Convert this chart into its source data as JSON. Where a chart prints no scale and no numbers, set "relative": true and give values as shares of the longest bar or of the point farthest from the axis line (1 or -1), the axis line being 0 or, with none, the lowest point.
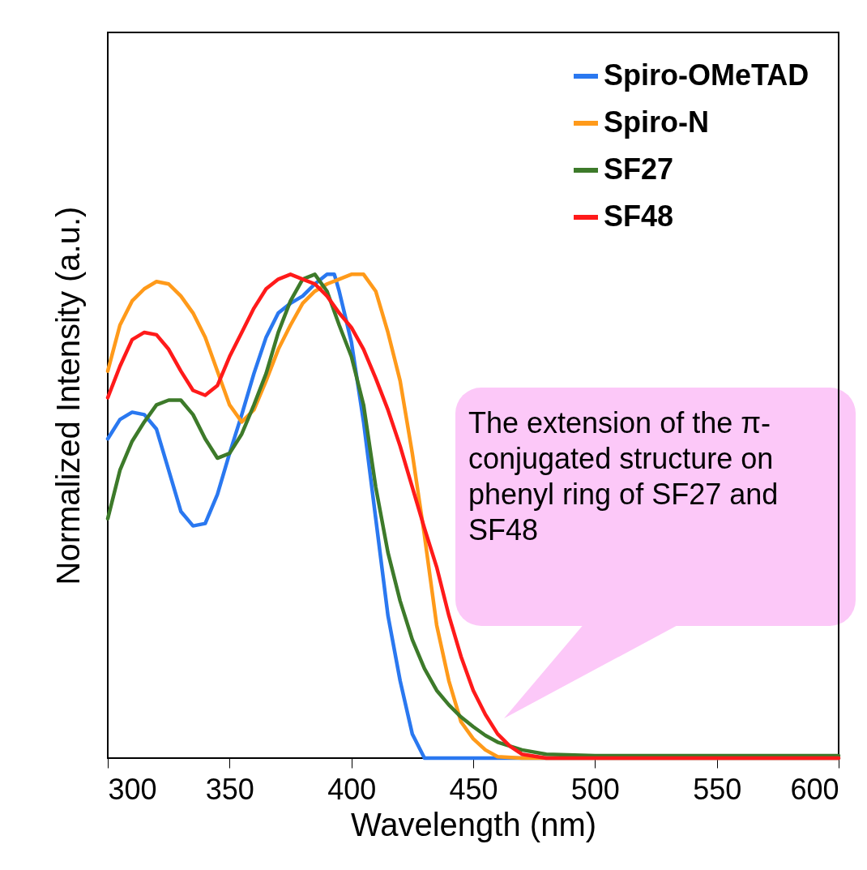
{
  "chart_data": {
    "type": "line",
    "xlabel": "Wavelength (nm)",
    "ylabel": "Normalized Intensity (a.u.)",
    "relative": true,
    "xlim": [
      300,
      600
    ],
    "xticks": [
      300,
      350,
      400,
      450,
      500,
      550,
      600
    ],
    "legend": "top right",
    "grid": false,
    "annotations": [
      "The extension of the π-conjugated structure on phenyl ring of SF27 and SF48"
    ],
    "series": [
      {
        "name": "Spiro-OMeTAD",
        "color": "#2a78f0",
        "x": [
          300,
          305,
          310,
          315,
          320,
          325,
          330,
          335,
          340,
          345,
          350,
          355,
          360,
          365,
          370,
          375,
          380,
          385,
          390,
          393,
          395,
          400,
          405,
          410,
          415,
          420,
          425,
          430,
          450,
          600
        ],
        "values": [
          0.66,
          0.7,
          0.715,
          0.71,
          0.68,
          0.595,
          0.51,
          0.48,
          0.485,
          0.545,
          0.63,
          0.71,
          0.795,
          0.87,
          0.92,
          0.94,
          0.955,
          0.98,
          1.0,
          1.0,
          0.965,
          0.86,
          0.695,
          0.495,
          0.295,
          0.16,
          0.05,
          0,
          0,
          0
        ]
      },
      {
        "name": "Spiro-N",
        "color": "#ff9a1a",
        "x": [
          300,
          305,
          310,
          315,
          320,
          325,
          330,
          335,
          340,
          345,
          350,
          355,
          360,
          365,
          370,
          375,
          380,
          385,
          390,
          395,
          400,
          405,
          410,
          415,
          420,
          425,
          430,
          435,
          440,
          445,
          450,
          455,
          460,
          470,
          600
        ],
        "values": [
          0.8,
          0.895,
          0.945,
          0.97,
          0.985,
          0.98,
          0.955,
          0.92,
          0.87,
          0.8,
          0.73,
          0.695,
          0.72,
          0.78,
          0.845,
          0.895,
          0.94,
          0.965,
          0.98,
          0.99,
          1.0,
          1.0,
          0.965,
          0.88,
          0.78,
          0.63,
          0.46,
          0.275,
          0.16,
          0.075,
          0.04,
          0.017,
          0.003,
          0,
          0
        ]
      },
      {
        "name": "SF27",
        "color": "#3d7a2a",
        "x": [
          300,
          305,
          310,
          315,
          320,
          325,
          330,
          335,
          340,
          345,
          350,
          355,
          360,
          365,
          370,
          375,
          380,
          385,
          390,
          395,
          400,
          405,
          410,
          415,
          420,
          425,
          430,
          435,
          440,
          445,
          450,
          455,
          460,
          470,
          480,
          500,
          600
        ],
        "values": [
          0.495,
          0.595,
          0.655,
          0.695,
          0.73,
          0.74,
          0.74,
          0.71,
          0.66,
          0.62,
          0.63,
          0.67,
          0.73,
          0.795,
          0.88,
          0.945,
          0.99,
          1.0,
          0.965,
          0.895,
          0.83,
          0.73,
          0.56,
          0.425,
          0.325,
          0.245,
          0.185,
          0.14,
          0.11,
          0.085,
          0.065,
          0.047,
          0.033,
          0.017,
          0.008,
          0.005,
          0.005
        ]
      },
      {
        "name": "SF48",
        "color": "#ff1a1a",
        "x": [
          300,
          305,
          310,
          315,
          320,
          325,
          330,
          335,
          340,
          345,
          350,
          355,
          360,
          365,
          370,
          375,
          380,
          385,
          390,
          395,
          400,
          405,
          410,
          415,
          420,
          425,
          430,
          435,
          440,
          445,
          450,
          455,
          460,
          465,
          470,
          480,
          600
        ],
        "values": [
          0.745,
          0.81,
          0.865,
          0.88,
          0.875,
          0.845,
          0.8,
          0.76,
          0.75,
          0.77,
          0.83,
          0.88,
          0.93,
          0.97,
          0.99,
          1.0,
          0.99,
          0.98,
          0.955,
          0.92,
          0.89,
          0.845,
          0.785,
          0.72,
          0.645,
          0.56,
          0.475,
          0.395,
          0.295,
          0.21,
          0.14,
          0.09,
          0.05,
          0.025,
          0.008,
          0,
          0
        ]
      }
    ]
  }
}
